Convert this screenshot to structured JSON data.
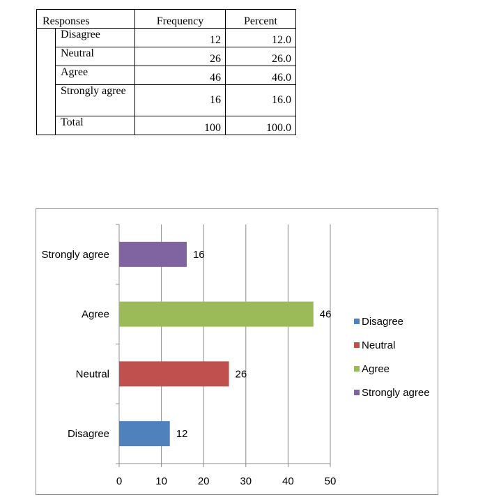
{
  "table": {
    "headers": [
      "Responses",
      "Frequency",
      "Percent"
    ],
    "rows": [
      {
        "label": "Disagree",
        "frequency": "12",
        "percent": "12.0"
      },
      {
        "label": "Neutral",
        "frequency": "26",
        "percent": "26.0"
      },
      {
        "label": "Agree",
        "frequency": "46",
        "percent": "46.0"
      },
      {
        "label": "Strongly agree",
        "frequency": "16",
        "percent": "16.0"
      },
      {
        "label": "Total",
        "frequency": "100",
        "percent": "100.0"
      }
    ]
  },
  "chart_data": {
    "type": "bar",
    "orientation": "horizontal",
    "categories": [
      "Disagree",
      "Neutral",
      "Agree",
      "Strongly agree"
    ],
    "values": [
      12,
      26,
      46,
      16
    ],
    "colors": [
      "#4f81bd",
      "#c0504d",
      "#9bbb59",
      "#8064a2"
    ],
    "xlim": [
      0,
      50
    ],
    "xticks": [
      0,
      10,
      20,
      30,
      40,
      50
    ],
    "grid": "vertical",
    "legend": {
      "placement": "right",
      "entries": [
        "Disagree",
        "Neutral",
        "Agree",
        "Strongly agree"
      ]
    },
    "data_labels": [
      "12",
      "26",
      "46",
      "16"
    ]
  }
}
